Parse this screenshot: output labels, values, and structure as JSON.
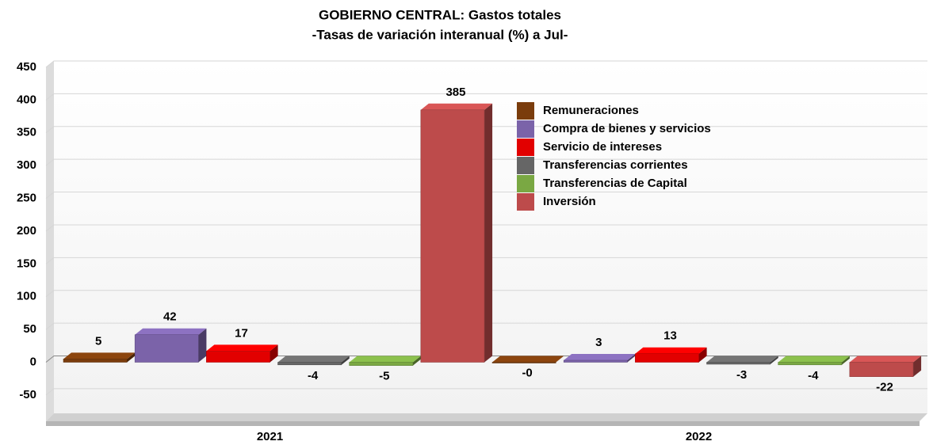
{
  "chart_data": {
    "type": "bar3d",
    "title": "GOBIERNO CENTRAL: Gastos totales",
    "subtitle": "-Tasas de variación interanual (%) a Jul-",
    "categories": [
      "2021",
      "2022"
    ],
    "series": [
      {
        "name": "Remuneraciones",
        "color": "#7a3c0c",
        "values": [
          5,
          -0.2
        ],
        "value_labels": [
          "5",
          "-0"
        ]
      },
      {
        "name": "Compra de bienes y servicios",
        "color": "#7b63a9",
        "values": [
          42,
          3
        ]
      },
      {
        "name": "Servicio de intereses",
        "color": "#e20000",
        "values": [
          17,
          13
        ]
      },
      {
        "name": "Transferencias corrientes",
        "color": "#666666",
        "values": [
          -4,
          -3
        ]
      },
      {
        "name": "Transferencias de Capital",
        "color": "#7aa843",
        "values": [
          -5,
          -4
        ]
      },
      {
        "name": "Inversión",
        "color": "#bd4b4b",
        "values": [
          385,
          -22
        ]
      }
    ],
    "ylim": [
      -90,
      450
    ],
    "yticks": [
      -50,
      0,
      50,
      100,
      150,
      200,
      250,
      300,
      350,
      400,
      450
    ],
    "grid": true,
    "legend": "top-right"
  }
}
